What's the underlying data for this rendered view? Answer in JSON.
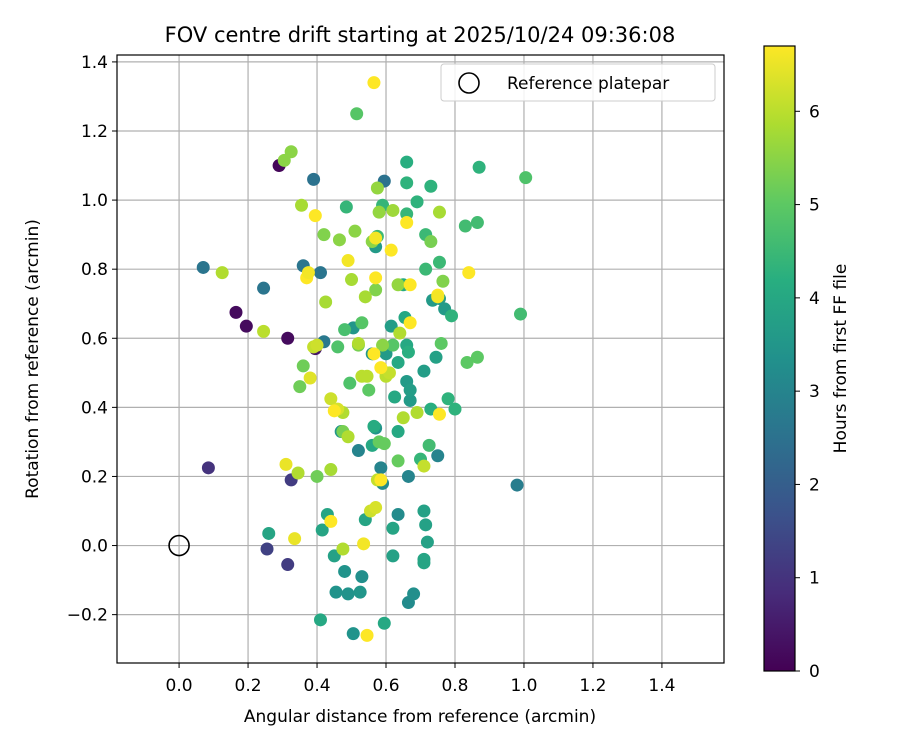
{
  "chart_data": {
    "type": "scatter",
    "title": "FOV centre drift starting at 2025/10/24 09:36:08",
    "xlabel": "Angular distance from reference (arcmin)",
    "ylabel": "Rotation from reference (arcmin)",
    "xlim": [
      -0.18,
      1.58
    ],
    "ylim": [
      -0.34,
      1.42
    ],
    "xticks": [
      0.0,
      0.2,
      0.4,
      0.6,
      0.8,
      1.0,
      1.2,
      1.4
    ],
    "xtick_labels": [
      "0.0",
      "0.2",
      "0.4",
      "0.6",
      "0.8",
      "1.0",
      "1.2",
      "1.4"
    ],
    "yticks": [
      -0.2,
      0.0,
      0.2,
      0.4,
      0.6,
      0.8,
      1.0,
      1.2,
      1.4
    ],
    "ytick_labels": [
      "−0.2",
      "0.0",
      "0.2",
      "0.4",
      "0.6",
      "0.8",
      "1.0",
      "1.2",
      "1.4"
    ],
    "grid": true,
    "legend": {
      "label": "Reference platepar",
      "location": "top-right"
    },
    "reference_point": {
      "x": 0.0,
      "y": 0.0
    },
    "colorbar": {
      "label": "Hours from first FF file",
      "range": [
        0,
        6.7
      ],
      "ticks": [
        0,
        1,
        2,
        3,
        4,
        5,
        6
      ],
      "tick_labels": [
        "0",
        "1",
        "2",
        "3",
        "4",
        "5",
        "6"
      ],
      "colormap": "viridis"
    },
    "points": [
      [
        0.29,
        1.1,
        0.1
      ],
      [
        0.165,
        0.675,
        0.2
      ],
      [
        0.195,
        0.635,
        0.2
      ],
      [
        0.315,
        0.6,
        0.2
      ],
      [
        0.395,
        0.57,
        0.4
      ],
      [
        0.085,
        0.225,
        1.0
      ],
      [
        0.325,
        0.19,
        1.2
      ],
      [
        0.255,
        -0.01,
        1.3
      ],
      [
        0.315,
        -0.055,
        1.2
      ],
      [
        0.39,
        1.06,
        2.5
      ],
      [
        0.595,
        1.055,
        2.5
      ],
      [
        0.07,
        0.805,
        2.6
      ],
      [
        0.245,
        0.745,
        2.6
      ],
      [
        0.36,
        0.81,
        2.6
      ],
      [
        0.41,
        0.79,
        2.6
      ],
      [
        0.42,
        0.59,
        2.7
      ],
      [
        0.98,
        0.175,
        2.8
      ],
      [
        0.52,
        0.275,
        3.0
      ],
      [
        0.585,
        0.225,
        3.0
      ],
      [
        0.665,
        0.2,
        3.0
      ],
      [
        0.75,
        0.26,
        3.0
      ],
      [
        0.59,
        0.18,
        3.2
      ],
      [
        0.635,
        0.09,
        3.2
      ],
      [
        0.665,
        -0.165,
        3.2
      ],
      [
        0.68,
        -0.14,
        3.3
      ],
      [
        0.53,
        -0.09,
        3.3
      ],
      [
        0.48,
        -0.075,
        3.4
      ],
      [
        0.455,
        -0.135,
        3.4
      ],
      [
        0.49,
        -0.14,
        3.4
      ],
      [
        0.525,
        -0.135,
        3.5
      ],
      [
        0.505,
        -0.255,
        3.4
      ],
      [
        0.57,
        0.34,
        3.4
      ],
      [
        0.47,
        0.33,
        3.5
      ],
      [
        0.505,
        0.63,
        3.5
      ],
      [
        0.56,
        0.555,
        3.5
      ],
      [
        0.57,
        0.865,
        3.6
      ],
      [
        0.6,
        0.555,
        3.6
      ],
      [
        0.615,
        0.635,
        3.7
      ],
      [
        0.67,
        0.42,
        3.6
      ],
      [
        0.66,
        0.475,
        3.6
      ],
      [
        0.67,
        0.45,
        3.7
      ],
      [
        0.71,
        0.505,
        3.7
      ],
      [
        0.745,
        0.545,
        3.8
      ],
      [
        0.735,
        0.71,
        3.6
      ],
      [
        0.755,
        0.715,
        3.7
      ],
      [
        0.77,
        0.685,
        3.6
      ],
      [
        0.45,
        -0.03,
        3.8
      ],
      [
        0.62,
        -0.03,
        3.8
      ],
      [
        0.71,
        -0.04,
        3.9
      ],
      [
        0.71,
        -0.05,
        3.9
      ],
      [
        0.72,
        0.01,
        3.8
      ],
      [
        0.715,
        0.06,
        3.8
      ],
      [
        0.71,
        0.1,
        3.8
      ],
      [
        0.62,
        0.05,
        3.9
      ],
      [
        0.415,
        0.045,
        3.9
      ],
      [
        0.43,
        0.09,
        3.9
      ],
      [
        0.54,
        0.075,
        3.9
      ],
      [
        0.41,
        -0.215,
        4.0
      ],
      [
        0.595,
        -0.225,
        4.0
      ],
      [
        0.26,
        0.035,
        3.9
      ],
      [
        0.56,
        0.29,
        4.0
      ],
      [
        0.635,
        0.33,
        4.0
      ],
      [
        0.625,
        0.43,
        4.0
      ],
      [
        0.565,
        0.345,
        4.1
      ],
      [
        0.655,
        0.66,
        4.0
      ],
      [
        0.66,
        0.58,
        4.0
      ],
      [
        0.635,
        0.53,
        4.0
      ],
      [
        0.6,
        0.5,
        4.1
      ],
      [
        0.65,
        0.755,
        4.1
      ],
      [
        0.665,
        0.56,
        4.2
      ],
      [
        0.73,
        0.395,
        4.2
      ],
      [
        0.79,
        0.665,
        4.3
      ],
      [
        0.78,
        0.425,
        4.3
      ],
      [
        0.8,
        0.395,
        4.3
      ],
      [
        0.7,
        0.25,
        4.4
      ],
      [
        0.725,
        0.29,
        4.6
      ],
      [
        0.87,
        1.095,
        4.3
      ],
      [
        0.66,
        1.11,
        4.2
      ],
      [
        0.73,
        1.04,
        4.3
      ],
      [
        0.66,
        1.05,
        4.3
      ],
      [
        0.69,
        0.995,
        4.3
      ],
      [
        0.485,
        0.98,
        4.4
      ],
      [
        0.59,
        0.985,
        4.4
      ],
      [
        0.66,
        0.96,
        4.4
      ],
      [
        0.715,
        0.9,
        4.5
      ],
      [
        0.755,
        0.82,
        4.5
      ],
      [
        0.715,
        0.8,
        4.5
      ],
      [
        0.575,
        0.895,
        4.5
      ],
      [
        0.83,
        0.925,
        4.6
      ],
      [
        0.865,
        0.935,
        4.6
      ],
      [
        0.99,
        0.67,
        4.6
      ],
      [
        1.005,
        1.065,
        4.8
      ],
      [
        0.515,
        1.25,
        4.9
      ],
      [
        0.48,
        0.625,
        4.7
      ],
      [
        0.495,
        0.47,
        4.8
      ],
      [
        0.46,
        0.575,
        4.8
      ],
      [
        0.53,
        0.645,
        4.9
      ],
      [
        0.62,
        0.58,
        4.9
      ],
      [
        0.76,
        0.585,
        5.0
      ],
      [
        0.835,
        0.53,
        5.0
      ],
      [
        0.865,
        0.545,
        5.0
      ],
      [
        0.55,
        0.45,
        5.0
      ],
      [
        0.58,
        0.3,
        5.1
      ],
      [
        0.595,
        0.295,
        5.1
      ],
      [
        0.635,
        0.245,
        5.1
      ],
      [
        0.4,
        0.2,
        5.2
      ],
      [
        0.36,
        0.52,
        5.2
      ],
      [
        0.35,
        0.46,
        5.2
      ],
      [
        0.52,
        0.58,
        5.3
      ],
      [
        0.475,
        0.33,
        5.3
      ],
      [
        0.73,
        0.88,
        5.3
      ],
      [
        0.765,
        0.765,
        5.4
      ],
      [
        0.57,
        0.74,
        5.4
      ],
      [
        0.59,
        0.58,
        5.5
      ],
      [
        0.325,
        1.14,
        5.5
      ],
      [
        0.305,
        1.115,
        5.5
      ],
      [
        0.42,
        0.9,
        5.4
      ],
      [
        0.465,
        0.885,
        5.5
      ],
      [
        0.51,
        0.91,
        5.5
      ],
      [
        0.56,
        0.88,
        5.5
      ],
      [
        0.58,
        0.965,
        5.6
      ],
      [
        0.575,
        1.035,
        5.6
      ],
      [
        0.635,
        0.755,
        5.6
      ],
      [
        0.62,
        0.97,
        5.7
      ],
      [
        0.755,
        0.965,
        5.8
      ],
      [
        0.355,
        0.985,
        5.8
      ],
      [
        0.425,
        0.705,
        5.8
      ],
      [
        0.54,
        0.72,
        5.8
      ],
      [
        0.5,
        0.77,
        5.8
      ],
      [
        0.44,
        0.22,
        5.8
      ],
      [
        0.345,
        0.21,
        5.9
      ],
      [
        0.52,
        0.585,
        5.9
      ],
      [
        0.64,
        0.615,
        5.9
      ],
      [
        0.65,
        0.37,
        5.9
      ],
      [
        0.69,
        0.385,
        5.9
      ],
      [
        0.475,
        0.385,
        5.9
      ],
      [
        0.49,
        0.315,
        5.9
      ],
      [
        0.475,
        -0.01,
        5.9
      ],
      [
        0.53,
        0.49,
        6.0
      ],
      [
        0.545,
        0.49,
        6.0
      ],
      [
        0.6,
        0.49,
        6.0
      ],
      [
        0.61,
        0.5,
        6.1
      ],
      [
        0.71,
        0.23,
        6.1
      ],
      [
        0.575,
        0.19,
        6.1
      ],
      [
        0.555,
        0.1,
        6.2
      ],
      [
        0.57,
        0.11,
        6.3
      ],
      [
        0.245,
        0.62,
        6.0
      ],
      [
        0.125,
        0.79,
        5.9
      ],
      [
        0.39,
        0.575,
        6.1
      ],
      [
        0.4,
        0.58,
        6.2
      ],
      [
        0.44,
        0.425,
        6.2
      ],
      [
        0.46,
        0.395,
        6.3
      ],
      [
        0.38,
        0.485,
        6.4
      ],
      [
        0.31,
        0.235,
        6.5
      ],
      [
        0.335,
        0.02,
        6.5
      ],
      [
        0.44,
        0.07,
        6.7
      ],
      [
        0.535,
        0.005,
        6.6
      ],
      [
        0.545,
        -0.26,
        6.7
      ],
      [
        0.565,
        1.34,
        6.7
      ],
      [
        0.395,
        0.955,
        6.7
      ],
      [
        0.57,
        0.89,
        6.6
      ],
      [
        0.615,
        0.855,
        6.7
      ],
      [
        0.66,
        0.935,
        6.7
      ],
      [
        0.37,
        0.775,
        6.7
      ],
      [
        0.375,
        0.79,
        6.6
      ],
      [
        0.49,
        0.825,
        6.6
      ],
      [
        0.57,
        0.775,
        6.7
      ],
      [
        0.67,
        0.755,
        6.7
      ],
      [
        0.75,
        0.725,
        6.7
      ],
      [
        0.84,
        0.79,
        6.7
      ],
      [
        0.67,
        0.645,
        6.7
      ],
      [
        0.565,
        0.555,
        6.7
      ],
      [
        0.585,
        0.515,
        6.7
      ],
      [
        0.45,
        0.39,
        6.7
      ],
      [
        0.755,
        0.38,
        6.7
      ],
      [
        0.585,
        0.19,
        6.7
      ],
      [
        0.75,
        0.72,
        6.6
      ]
    ]
  }
}
